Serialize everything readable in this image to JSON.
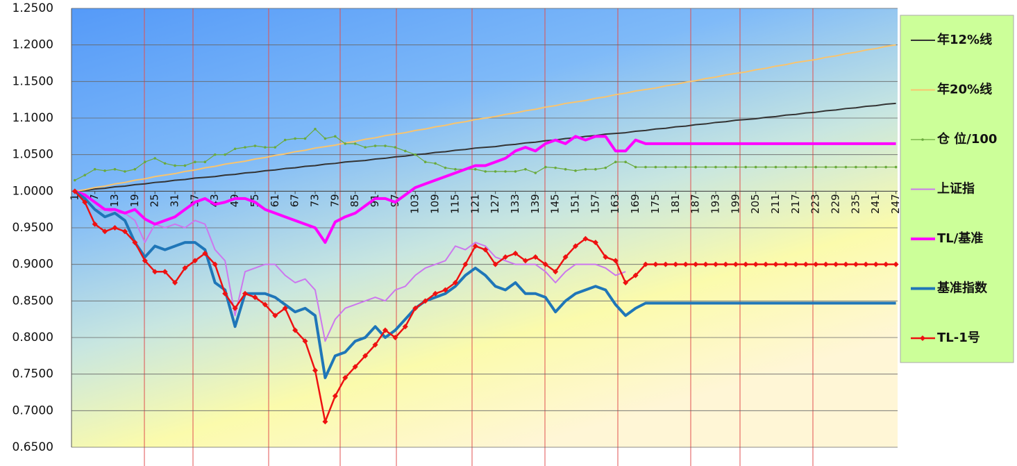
{
  "chart_data": {
    "type": "line",
    "x": [
      1,
      4,
      7,
      10,
      13,
      16,
      19,
      22,
      25,
      28,
      31,
      34,
      37,
      40,
      43,
      46,
      49,
      52,
      55,
      58,
      61,
      64,
      67,
      70,
      73,
      76,
      79,
      82,
      85,
      88,
      91,
      94,
      97,
      100,
      103,
      106,
      109,
      112,
      115,
      118,
      121,
      124,
      127,
      130,
      133,
      136,
      139,
      142,
      145,
      148,
      151,
      154,
      157,
      160,
      163,
      166,
      169,
      172,
      175,
      178,
      181,
      184,
      187,
      190,
      193,
      196,
      199,
      202,
      205,
      208,
      211,
      214,
      217,
      220,
      223,
      226,
      229,
      232,
      235,
      238,
      241,
      244,
      247
    ],
    "xlim": [
      0,
      247.5
    ],
    "xticks": [
      1,
      7,
      13,
      19,
      25,
      31,
      37,
      43,
      49,
      55,
      61,
      67,
      73,
      79,
      85,
      91,
      97,
      103,
      109,
      115,
      121,
      127,
      133,
      139,
      145,
      151,
      157,
      163,
      169,
      175,
      181,
      187,
      193,
      199,
      205,
      211,
      217,
      223,
      229,
      235,
      241,
      247
    ],
    "ylim": [
      0.65,
      1.25
    ],
    "yticks": [
      {
        "value": 0.65,
        "label": "0.6500"
      },
      {
        "value": 0.7,
        "label": "0.7000"
      },
      {
        "value": 0.75,
        "label": "0.7500"
      },
      {
        "value": 0.8,
        "label": "0.8000"
      },
      {
        "value": 0.85,
        "label": "0.8500"
      },
      {
        "value": 0.9,
        "label": "0.9000"
      },
      {
        "value": 0.95,
        "label": "0.9500"
      },
      {
        "value": 1.0,
        "label": "1.0000"
      },
      {
        "value": 1.05,
        "label": "1.0500"
      },
      {
        "value": 1.1,
        "label": "1.1000"
      },
      {
        "value": 1.15,
        "label": "1.1500"
      },
      {
        "value": 1.2,
        "label": "1.2000"
      },
      {
        "value": 1.25,
        "label": "1.2500"
      }
    ],
    "grid": true,
    "legend_position": "right",
    "series": [
      {
        "name": "年12%线",
        "color": "#333333",
        "width": 2,
        "marker": "none",
        "values": [
          1.0,
          1.001,
          1.003,
          1.004,
          1.006,
          1.007,
          1.009,
          1.01,
          1.012,
          1.013,
          1.015,
          1.016,
          1.018,
          1.019,
          1.02,
          1.022,
          1.023,
          1.025,
          1.026,
          1.028,
          1.029,
          1.031,
          1.032,
          1.034,
          1.035,
          1.037,
          1.038,
          1.04,
          1.041,
          1.042,
          1.044,
          1.045,
          1.047,
          1.048,
          1.05,
          1.051,
          1.053,
          1.054,
          1.056,
          1.057,
          1.059,
          1.06,
          1.061,
          1.063,
          1.064,
          1.066,
          1.067,
          1.069,
          1.07,
          1.072,
          1.073,
          1.075,
          1.076,
          1.078,
          1.079,
          1.08,
          1.082,
          1.083,
          1.085,
          1.086,
          1.088,
          1.089,
          1.091,
          1.092,
          1.094,
          1.095,
          1.097,
          1.098,
          1.099,
          1.101,
          1.102,
          1.104,
          1.105,
          1.107,
          1.108,
          1.11,
          1.111,
          1.113,
          1.114,
          1.116,
          1.117,
          1.119,
          1.12
        ]
      },
      {
        "name": "年20%线",
        "color": "#f9c46e",
        "width": 2,
        "marker": "none",
        "values": [
          1.0,
          1.002,
          1.005,
          1.007,
          1.01,
          1.012,
          1.015,
          1.017,
          1.02,
          1.022,
          1.024,
          1.027,
          1.029,
          1.032,
          1.034,
          1.037,
          1.039,
          1.041,
          1.044,
          1.046,
          1.049,
          1.051,
          1.054,
          1.056,
          1.059,
          1.061,
          1.063,
          1.066,
          1.068,
          1.071,
          1.073,
          1.076,
          1.078,
          1.08,
          1.083,
          1.085,
          1.088,
          1.09,
          1.093,
          1.095,
          1.098,
          1.1,
          1.102,
          1.105,
          1.107,
          1.11,
          1.112,
          1.115,
          1.117,
          1.12,
          1.122,
          1.124,
          1.127,
          1.129,
          1.132,
          1.134,
          1.137,
          1.139,
          1.141,
          1.144,
          1.146,
          1.149,
          1.151,
          1.154,
          1.156,
          1.159,
          1.161,
          1.163,
          1.166,
          1.168,
          1.171,
          1.173,
          1.176,
          1.178,
          1.18,
          1.183,
          1.185,
          1.188,
          1.19,
          1.193,
          1.195,
          1.198,
          1.2
        ]
      },
      {
        "name": "仓 位/100",
        "color": "#6aaa3c",
        "width": 1.2,
        "marker": "dot",
        "values": [
          1.015,
          1.022,
          1.03,
          1.028,
          1.03,
          1.027,
          1.03,
          1.04,
          1.045,
          1.038,
          1.035,
          1.035,
          1.04,
          1.04,
          1.05,
          1.05,
          1.058,
          1.06,
          1.062,
          1.06,
          1.06,
          1.07,
          1.072,
          1.072,
          1.085,
          1.072,
          1.075,
          1.065,
          1.065,
          1.06,
          1.062,
          1.062,
          1.06,
          1.055,
          1.05,
          1.04,
          1.038,
          1.032,
          1.03,
          1.03,
          1.03,
          1.027,
          1.027,
          1.027,
          1.027,
          1.03,
          1.025,
          1.033,
          1.032,
          1.03,
          1.028,
          1.03,
          1.03,
          1.032,
          1.04,
          1.04,
          1.033,
          1.033,
          1.033,
          1.033,
          1.033,
          1.033,
          1.033,
          1.033,
          1.033,
          1.033,
          1.033,
          1.033,
          1.033,
          1.033,
          1.033,
          1.033,
          1.033,
          1.033,
          1.033,
          1.033,
          1.033,
          1.033,
          1.033,
          1.033,
          1.033,
          1.033,
          1.033
        ]
      },
      {
        "name": "上证指",
        "color": "#cc77ee",
        "width": 2,
        "marker": "none",
        "values": [
          1.0,
          0.99,
          0.975,
          0.975,
          0.97,
          0.97,
          0.96,
          0.93,
          0.955,
          0.95,
          0.955,
          0.95,
          0.96,
          0.955,
          0.92,
          0.905,
          0.83,
          0.89,
          0.895,
          0.9,
          0.9,
          0.885,
          0.875,
          0.88,
          0.865,
          0.795,
          0.825,
          0.84,
          0.845,
          0.85,
          0.855,
          0.85,
          0.865,
          0.87,
          0.885,
          0.895,
          0.9,
          0.905,
          0.925,
          0.92,
          0.93,
          0.925,
          0.91,
          0.905,
          0.9,
          0.9,
          0.9,
          0.89,
          0.875,
          0.89,
          0.9,
          0.9,
          0.9,
          0.895,
          0.885,
          0.89,
          null,
          null,
          null,
          null,
          null,
          null,
          null,
          null,
          null,
          null,
          null,
          null,
          null,
          null,
          null,
          null,
          null,
          null,
          null,
          null,
          null,
          null,
          null,
          null,
          null,
          null,
          null
        ]
      },
      {
        "name": "TL/基准",
        "color": "#ff00ff",
        "width": 4,
        "marker": "none",
        "values": [
          1.0,
          0.995,
          0.985,
          0.975,
          0.975,
          0.97,
          0.975,
          0.962,
          0.955,
          0.96,
          0.965,
          0.975,
          0.985,
          0.99,
          0.982,
          0.985,
          0.99,
          0.99,
          0.985,
          0.975,
          0.97,
          0.965,
          0.96,
          0.955,
          0.95,
          0.93,
          0.958,
          0.965,
          0.97,
          0.98,
          0.99,
          0.99,
          0.985,
          0.995,
          1.005,
          1.01,
          1.015,
          1.02,
          1.025,
          1.03,
          1.035,
          1.035,
          1.04,
          1.045,
          1.055,
          1.06,
          1.055,
          1.065,
          1.07,
          1.065,
          1.075,
          1.07,
          1.075,
          1.075,
          1.055,
          1.055,
          1.07,
          1.065,
          1.065,
          1.065,
          1.065,
          1.065,
          1.065,
          1.065,
          1.065,
          1.065,
          1.065,
          1.065,
          1.065,
          1.065,
          1.065,
          1.065,
          1.065,
          1.065,
          1.065,
          1.065,
          1.065,
          1.065,
          1.065,
          1.065,
          1.065,
          1.065,
          1.065
        ]
      },
      {
        "name": "基准指数",
        "color": "#1f76b8",
        "width": 4,
        "marker": "none",
        "values": [
          1.0,
          0.99,
          0.975,
          0.965,
          0.97,
          0.96,
          0.93,
          0.91,
          0.925,
          0.92,
          0.925,
          0.93,
          0.93,
          0.92,
          0.875,
          0.865,
          0.815,
          0.86,
          0.86,
          0.86,
          0.855,
          0.845,
          0.835,
          0.84,
          0.83,
          0.745,
          0.775,
          0.78,
          0.795,
          0.8,
          0.815,
          0.8,
          0.81,
          0.825,
          0.84,
          0.85,
          0.855,
          0.86,
          0.87,
          0.885,
          0.895,
          0.885,
          0.87,
          0.865,
          0.875,
          0.86,
          0.86,
          0.855,
          0.835,
          0.85,
          0.86,
          0.865,
          0.87,
          0.865,
          0.845,
          0.83,
          0.84,
          0.847,
          0.847,
          0.847,
          0.847,
          0.847,
          0.847,
          0.847,
          0.847,
          0.847,
          0.847,
          0.847,
          0.847,
          0.847,
          0.847,
          0.847,
          0.847,
          0.847,
          0.847,
          0.847,
          0.847,
          0.847,
          0.847,
          0.847,
          0.847,
          0.847,
          0.847
        ]
      },
      {
        "name": "TL-1号",
        "color": "#ee1111",
        "width": 2.5,
        "marker": "diamond",
        "values": [
          1.0,
          0.985,
          0.955,
          0.945,
          0.95,
          0.945,
          0.93,
          0.905,
          0.89,
          0.89,
          0.875,
          0.895,
          0.905,
          0.915,
          0.9,
          0.86,
          0.84,
          0.86,
          0.855,
          0.845,
          0.83,
          0.84,
          0.81,
          0.795,
          0.755,
          0.685,
          0.72,
          0.745,
          0.76,
          0.775,
          0.79,
          0.81,
          0.8,
          0.815,
          0.84,
          0.85,
          0.86,
          0.865,
          0.875,
          0.9,
          0.925,
          0.92,
          0.9,
          0.91,
          0.915,
          0.905,
          0.91,
          0.9,
          0.89,
          0.91,
          0.925,
          0.935,
          0.93,
          0.91,
          0.905,
          0.875,
          0.885,
          0.9,
          0.9,
          0.9,
          0.9,
          0.9,
          0.9,
          0.9,
          0.9,
          0.9,
          0.9,
          0.9,
          0.9,
          0.9,
          0.9,
          0.9,
          0.9,
          0.9,
          0.9,
          0.9,
          0.9,
          0.9,
          0.9,
          0.9,
          0.9,
          0.9,
          0.9
        ]
      }
    ]
  }
}
